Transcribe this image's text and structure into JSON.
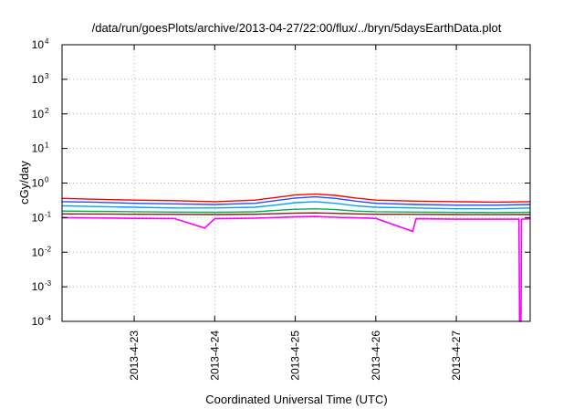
{
  "chart_data": {
    "type": "line",
    "title": "/data/run/goesPlots/archive/2013-04-27/22:00/flux/../bryn/5daysEarthData.plot",
    "xlabel": "Coordinated Universal Time (UTC)",
    "ylabel": "cGy/day",
    "yscale": "log",
    "ylim": [
      0.0001,
      10000
    ],
    "xlim": [
      "2013-04-22T02:30",
      "2013-04-27T22:00"
    ],
    "grid": true,
    "x_ticks": [
      {
        "value": "2013-04-23T00:00",
        "label": "2013-4-23"
      },
      {
        "value": "2013-04-24T00:00",
        "label": "2013-4-24"
      },
      {
        "value": "2013-04-25T00:00",
        "label": "2013-4-25"
      },
      {
        "value": "2013-04-26T00:00",
        "label": "2013-4-26"
      },
      {
        "value": "2013-04-27T00:00",
        "label": "2013-4-27"
      }
    ],
    "y_ticks": [
      {
        "value": 0.0001,
        "base": "10",
        "exp": "-4"
      },
      {
        "value": 0.001,
        "base": "10",
        "exp": "-3"
      },
      {
        "value": 0.01,
        "base": "10",
        "exp": "-2"
      },
      {
        "value": 0.1,
        "base": "10",
        "exp": "-1"
      },
      {
        "value": 1,
        "base": "10",
        "exp": "0"
      },
      {
        "value": 10,
        "base": "10",
        "exp": "1"
      },
      {
        "value": 100,
        "base": "10",
        "exp": "2"
      },
      {
        "value": 1000,
        "base": "10",
        "exp": "3"
      },
      {
        "value": 10000,
        "base": "10",
        "exp": "4"
      }
    ],
    "series": [
      {
        "color": "#ff0000",
        "points": [
          [
            "2013-04-22T02:30",
            0.36
          ],
          [
            "2013-04-22T12:00",
            0.34
          ],
          [
            "2013-04-23T00:00",
            0.32
          ],
          [
            "2013-04-23T12:00",
            0.31
          ],
          [
            "2013-04-24T00:00",
            0.29
          ],
          [
            "2013-04-24T12:00",
            0.32
          ],
          [
            "2013-04-24T18:00",
            0.38
          ],
          [
            "2013-04-25T00:00",
            0.45
          ],
          [
            "2013-04-25T06:00",
            0.48
          ],
          [
            "2013-04-25T12:00",
            0.44
          ],
          [
            "2013-04-25T18:00",
            0.37
          ],
          [
            "2013-04-26T00:00",
            0.32
          ],
          [
            "2013-04-26T12:00",
            0.3
          ],
          [
            "2013-04-27T00:00",
            0.29
          ],
          [
            "2013-04-27T12:00",
            0.28
          ],
          [
            "2013-04-27T22:00",
            0.29
          ]
        ]
      },
      {
        "color": "#1f4fff",
        "points": [
          [
            "2013-04-22T02:30",
            0.29
          ],
          [
            "2013-04-22T12:00",
            0.28
          ],
          [
            "2013-04-23T00:00",
            0.26
          ],
          [
            "2013-04-23T12:00",
            0.25
          ],
          [
            "2013-04-24T00:00",
            0.24
          ],
          [
            "2013-04-24T12:00",
            0.26
          ],
          [
            "2013-04-24T18:00",
            0.31
          ],
          [
            "2013-04-25T00:00",
            0.37
          ],
          [
            "2013-04-25T06:00",
            0.4
          ],
          [
            "2013-04-25T12:00",
            0.36
          ],
          [
            "2013-04-25T18:00",
            0.3
          ],
          [
            "2013-04-26T00:00",
            0.26
          ],
          [
            "2013-04-26T12:00",
            0.24
          ],
          [
            "2013-04-27T00:00",
            0.23
          ],
          [
            "2013-04-27T12:00",
            0.23
          ],
          [
            "2013-04-27T22:00",
            0.24
          ]
        ]
      },
      {
        "color": "#00a0ff",
        "points": [
          [
            "2013-04-22T02:30",
            0.22
          ],
          [
            "2013-04-22T12:00",
            0.21
          ],
          [
            "2013-04-23T00:00",
            0.2
          ],
          [
            "2013-04-23T12:00",
            0.19
          ],
          [
            "2013-04-24T00:00",
            0.19
          ],
          [
            "2013-04-24T12:00",
            0.2
          ],
          [
            "2013-04-24T18:00",
            0.23
          ],
          [
            "2013-04-25T00:00",
            0.27
          ],
          [
            "2013-04-25T06:00",
            0.29
          ],
          [
            "2013-04-25T12:00",
            0.26
          ],
          [
            "2013-04-25T18:00",
            0.22
          ],
          [
            "2013-04-26T00:00",
            0.2
          ],
          [
            "2013-04-26T12:00",
            0.19
          ],
          [
            "2013-04-27T00:00",
            0.18
          ],
          [
            "2013-04-27T12:00",
            0.18
          ],
          [
            "2013-04-27T22:00",
            0.19
          ]
        ]
      },
      {
        "color": "#00b050",
        "points": [
          [
            "2013-04-22T02:30",
            0.155
          ],
          [
            "2013-04-22T12:00",
            0.152
          ],
          [
            "2013-04-23T00:00",
            0.148
          ],
          [
            "2013-04-23T12:00",
            0.145
          ],
          [
            "2013-04-24T00:00",
            0.143
          ],
          [
            "2013-04-24T12:00",
            0.147
          ],
          [
            "2013-04-24T18:00",
            0.16
          ],
          [
            "2013-04-25T00:00",
            0.175
          ],
          [
            "2013-04-25T06:00",
            0.18
          ],
          [
            "2013-04-25T12:00",
            0.17
          ],
          [
            "2013-04-25T18:00",
            0.155
          ],
          [
            "2013-04-26T00:00",
            0.148
          ],
          [
            "2013-04-26T12:00",
            0.145
          ],
          [
            "2013-04-27T00:00",
            0.142
          ],
          [
            "2013-04-27T12:00",
            0.14
          ],
          [
            "2013-04-27T22:00",
            0.143
          ]
        ]
      },
      {
        "color": "#8b1a1a",
        "points": [
          [
            "2013-04-22T02:30",
            0.128
          ],
          [
            "2013-04-22T12:00",
            0.127
          ],
          [
            "2013-04-23T00:00",
            0.125
          ],
          [
            "2013-04-23T12:00",
            0.124
          ],
          [
            "2013-04-24T00:00",
            0.123
          ],
          [
            "2013-04-24T12:00",
            0.125
          ],
          [
            "2013-04-24T18:00",
            0.13
          ],
          [
            "2013-04-25T00:00",
            0.135
          ],
          [
            "2013-04-25T06:00",
            0.137
          ],
          [
            "2013-04-25T12:00",
            0.133
          ],
          [
            "2013-04-25T18:00",
            0.128
          ],
          [
            "2013-04-26T00:00",
            0.125
          ],
          [
            "2013-04-26T12:00",
            0.124
          ],
          [
            "2013-04-27T00:00",
            0.123
          ],
          [
            "2013-04-27T12:00",
            0.122
          ],
          [
            "2013-04-27T22:00",
            0.123
          ]
        ]
      },
      {
        "color": "#ff00ff",
        "points": [
          [
            "2013-04-22T02:30",
            0.1
          ],
          [
            "2013-04-22T12:00",
            0.098
          ],
          [
            "2013-04-23T00:00",
            0.095
          ],
          [
            "2013-04-23T12:00",
            0.094
          ],
          [
            "2013-04-23T21:00",
            0.05
          ],
          [
            "2013-04-24T00:00",
            0.093
          ],
          [
            "2013-04-24T12:00",
            0.096
          ],
          [
            "2013-04-25T00:00",
            0.105
          ],
          [
            "2013-04-25T06:00",
            0.108
          ],
          [
            "2013-04-25T12:00",
            0.102
          ],
          [
            "2013-04-26T00:00",
            0.095
          ],
          [
            "2013-04-26T11:00",
            0.04
          ],
          [
            "2013-04-26T12:00",
            0.093
          ],
          [
            "2013-04-27T00:00",
            0.09
          ],
          [
            "2013-04-27T12:00",
            0.09
          ],
          [
            "2013-04-27T18:40",
            0.09
          ],
          [
            "2013-04-27T18:50",
            0.0001
          ],
          [
            "2013-04-27T19:15",
            0.0001
          ],
          [
            "2013-04-27T19:25",
            0.09
          ],
          [
            "2013-04-27T22:00",
            0.092
          ]
        ]
      }
    ]
  }
}
